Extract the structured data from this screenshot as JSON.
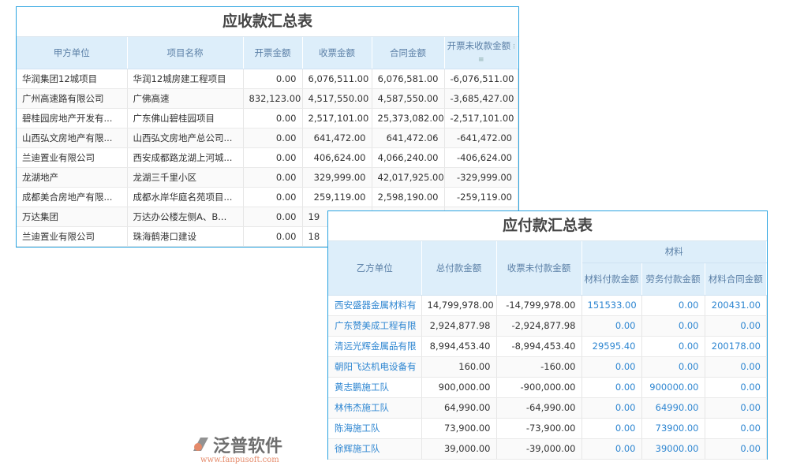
{
  "receivable": {
    "title": "应收款汇总表",
    "headers": [
      "甲方单位",
      "项目名称",
      "开票金额",
      "收票金额",
      "合同金额",
      "开票未收款金额"
    ],
    "rows": [
      [
        "华润集团12城项目",
        "华润12城房建工程项目",
        "0.00",
        "6,076,511.00",
        "6,076,581.00",
        "-6,076,511.00"
      ],
      [
        "广州高速路有限公司",
        "广佛高速",
        "832,123.00",
        "4,517,550.00",
        "4,587,550.00",
        "-3,685,427.00"
      ],
      [
        "碧桂园房地产开发有...",
        "广东佛山碧桂园项目",
        "0.00",
        "2,517,101.00",
        "25,373,082.00",
        "-2,517,101.00"
      ],
      [
        "山西弘文房地产有限...",
        "山西弘文房地产总公司...",
        "0.00",
        "641,472.00",
        "641,472.06",
        "-641,472.00"
      ],
      [
        "兰迪置业有限公司",
        "西安成都路龙湖上河城...",
        "0.00",
        "406,624.00",
        "4,066,240.00",
        "-406,624.00"
      ],
      [
        "龙湖地产",
        "龙湖三千里小区",
        "0.00",
        "329,999.00",
        "42,017,925.00",
        "-329,999.00"
      ],
      [
        "成都美合房地产有限...",
        "成都水岸华庭名苑项目...",
        "0.00",
        "259,119.00",
        "2,598,190.00",
        "-259,119.00"
      ],
      [
        "万达集团",
        "万达办公楼左侧A、B...",
        "0.00",
        "19",
        "",
        ""
      ],
      [
        "兰迪置业有限公司",
        "珠海鹤港口建设",
        "0.00",
        "18",
        "",
        ""
      ]
    ]
  },
  "payable": {
    "title": "应付款汇总表",
    "group_header": "材料",
    "headers": [
      "乙方单位",
      "总付款金额",
      "收票未付款金额",
      "材料付款金额",
      "劳务付款金额",
      "材料合同金额"
    ],
    "rows": [
      [
        "西安盛器金属材料有",
        "14,799,978.00",
        "-14,799,978.00",
        "151533.00",
        "0.00",
        "200431.00"
      ],
      [
        "广东赞美成工程有限",
        "2,924,877.98",
        "-2,924,877.98",
        "0.00",
        "0.00",
        "0.00"
      ],
      [
        "清远光辉金属品有限",
        "8,994,453.40",
        "-8,994,453.40",
        "29595.40",
        "0.00",
        "200178.00"
      ],
      [
        "朝阳飞达机电设备有",
        "160.00",
        "-160.00",
        "0.00",
        "0.00",
        "0.00"
      ],
      [
        "黄志鹏施工队",
        "900,000.00",
        "-900,000.00",
        "0.00",
        "900000.00",
        "0.00"
      ],
      [
        "林伟杰施工队",
        "64,990.00",
        "-64,990.00",
        "0.00",
        "64990.00",
        "0.00"
      ],
      [
        "陈海施工队",
        "73,900.00",
        "-73,900.00",
        "0.00",
        "73900.00",
        "0.00"
      ],
      [
        "徐辉施工队",
        "39,000.00",
        "-39,000.00",
        "0.00",
        "39000.00",
        "0.00"
      ]
    ]
  },
  "logo": {
    "name": "泛普软件",
    "url": "www.fanpusoft.com"
  },
  "colors": {
    "border": "#29a3e0",
    "header_bg": "#ddeefa",
    "link": "#2e86d1"
  }
}
